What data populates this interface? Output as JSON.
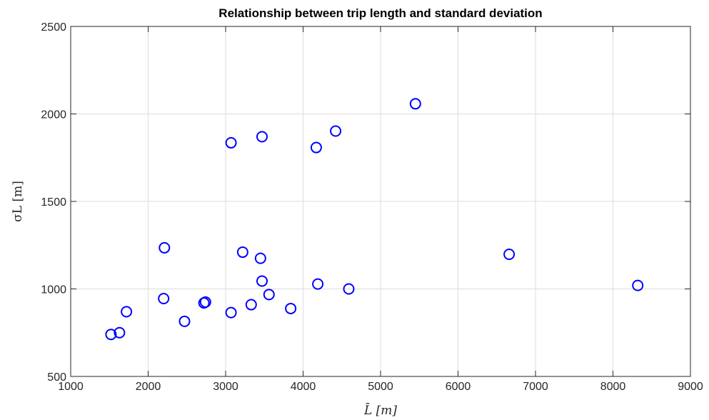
{
  "chart_data": {
    "type": "scatter",
    "title": "Relationship between trip length and standard deviation",
    "xlabel": "L̄ [m]",
    "ylabel": "σL [m]",
    "xlim": [
      1000,
      9000
    ],
    "ylim": [
      500,
      2500
    ],
    "xticks": [
      "1000",
      "2000",
      "3000",
      "4000",
      "5000",
      "6000",
      "7000",
      "8000",
      "9000"
    ],
    "yticks": [
      "500",
      "1000",
      "1500",
      "2000",
      "2500"
    ],
    "grid": true,
    "marker": "circle-open",
    "marker_color": "#0000ff",
    "points": [
      {
        "x": 1520,
        "y": 740
      },
      {
        "x": 1630,
        "y": 750
      },
      {
        "x": 1720,
        "y": 870
      },
      {
        "x": 2200,
        "y": 945
      },
      {
        "x": 2210,
        "y": 1235
      },
      {
        "x": 2470,
        "y": 815
      },
      {
        "x": 2720,
        "y": 920
      },
      {
        "x": 2740,
        "y": 925
      },
      {
        "x": 3070,
        "y": 1835
      },
      {
        "x": 3070,
        "y": 865
      },
      {
        "x": 3220,
        "y": 1210
      },
      {
        "x": 3330,
        "y": 910
      },
      {
        "x": 3450,
        "y": 1175
      },
      {
        "x": 3470,
        "y": 1870
      },
      {
        "x": 3470,
        "y": 1045
      },
      {
        "x": 3560,
        "y": 968
      },
      {
        "x": 3840,
        "y": 888
      },
      {
        "x": 4170,
        "y": 1808
      },
      {
        "x": 4190,
        "y": 1028
      },
      {
        "x": 4420,
        "y": 1902
      },
      {
        "x": 4590,
        "y": 1000
      },
      {
        "x": 5450,
        "y": 2058
      },
      {
        "x": 6660,
        "y": 1198
      },
      {
        "x": 8320,
        "y": 1020
      }
    ]
  }
}
